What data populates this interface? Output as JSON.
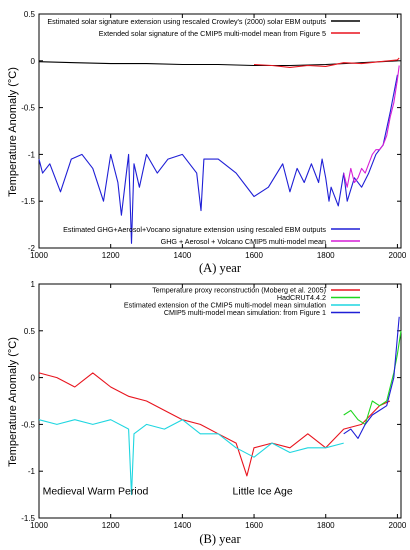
{
  "chart_data": [
    {
      "type": "line",
      "panel": "A",
      "caption": "(A) year",
      "ylabel": "Temperature Anomaly (°C)",
      "xlim": [
        1000,
        2010
      ],
      "ylim": [
        -2,
        0.5
      ],
      "xticks": [
        1000,
        1200,
        1400,
        1600,
        1800,
        2000
      ],
      "yticks": [
        -2,
        -1.5,
        -1,
        -0.5,
        0,
        0.5
      ],
      "ytick_labels": [
        "-2",
        "-1.5",
        "-1",
        "-0.5",
        "0",
        "0.5"
      ],
      "legend_top": [
        {
          "label": "Estimated solar signature extension using rescaled Crowley's (2000) solar EBM outputs",
          "color": "#000000"
        },
        {
          "label": "Extended solar signature of the CMIP5 multi-model mean from Figure 5",
          "color": "#e8141e"
        }
      ],
      "legend_bottom": [
        {
          "label": "Estimated GHG+Aerosol+Vocano signature extension using rescaled EBM outputs",
          "color": "#1f1fd6"
        },
        {
          "label": "GHG + Aerosol + Volcano CMIP5 multi-model mean",
          "color": "#d61fd6"
        }
      ],
      "series": [
        {
          "name": "Estimated solar signature extension using rescaled Crowley's (2000) solar EBM outputs",
          "color": "#000000",
          "x": [
            1000,
            1100,
            1200,
            1300,
            1400,
            1500,
            1600,
            1700,
            1800,
            1900,
            2000
          ],
          "y": [
            -0.01,
            -0.02,
            -0.03,
            -0.03,
            -0.04,
            -0.04,
            -0.05,
            -0.05,
            -0.04,
            -0.02,
            0.0
          ]
        },
        {
          "name": "Extended solar signature of the CMIP5 multi-model mean from Figure 5",
          "color": "#e8141e",
          "x": [
            1600,
            1650,
            1700,
            1750,
            1800,
            1850,
            1900,
            1950,
            2000,
            2005
          ],
          "y": [
            -0.04,
            -0.05,
            -0.07,
            -0.05,
            -0.06,
            -0.02,
            -0.03,
            -0.01,
            0.01,
            0.03
          ]
        },
        {
          "name": "Estimated GHG+Aerosol+Vocano signature extension using rescaled EBM outputs",
          "color": "#1f1fd6",
          "x": [
            1000,
            1010,
            1030,
            1060,
            1090,
            1120,
            1150,
            1180,
            1200,
            1220,
            1230,
            1250,
            1258,
            1265,
            1280,
            1300,
            1330,
            1360,
            1400,
            1440,
            1452,
            1460,
            1500,
            1550,
            1600,
            1640,
            1680,
            1700,
            1720,
            1740,
            1760,
            1780,
            1790,
            1800,
            1809,
            1815,
            1835,
            1850,
            1860,
            1880,
            1900,
            1920,
            1940,
            1960,
            1980,
            2000
          ],
          "y": [
            -1.05,
            -1.2,
            -1.1,
            -1.4,
            -1.05,
            -1.0,
            -1.15,
            -1.5,
            -1.0,
            -1.3,
            -1.65,
            -1.0,
            -1.95,
            -1.1,
            -1.35,
            -1.0,
            -1.2,
            -1.05,
            -1.0,
            -1.2,
            -1.6,
            -1.05,
            -1.05,
            -1.2,
            -1.45,
            -1.35,
            -1.1,
            -1.4,
            -1.15,
            -1.3,
            -1.1,
            -1.3,
            -1.05,
            -1.25,
            -1.5,
            -1.35,
            -1.55,
            -1.2,
            -1.5,
            -1.25,
            -1.35,
            -1.2,
            -1.0,
            -0.9,
            -0.55,
            -0.15
          ]
        },
        {
          "name": "GHG + Aerosol + Volcano CMIP5 multi-model mean",
          "color": "#d61fd6",
          "x": [
            1850,
            1860,
            1870,
            1880,
            1890,
            1900,
            1910,
            1920,
            1930,
            1940,
            1950,
            1960,
            1970,
            1980,
            1990,
            2000,
            2005
          ],
          "y": [
            -1.2,
            -1.35,
            -1.15,
            -1.3,
            -1.25,
            -1.15,
            -1.2,
            -1.1,
            -1.0,
            -0.95,
            -0.95,
            -0.9,
            -0.8,
            -0.6,
            -0.45,
            -0.2,
            -0.05
          ]
        }
      ]
    },
    {
      "type": "line",
      "panel": "B",
      "caption": "(B) year",
      "ylabel": "Temperature Anomaly (°C)",
      "xlim": [
        1000,
        2010
      ],
      "ylim": [
        -1.5,
        1
      ],
      "xticks": [
        1000,
        1200,
        1400,
        1600,
        1800,
        2000
      ],
      "yticks": [
        -1.5,
        -1,
        -0.5,
        0,
        0.5,
        1
      ],
      "ytick_labels": [
        "-1.5",
        "-1",
        "-0.5",
        "0",
        "0.5",
        "1"
      ],
      "annotations": [
        {
          "text": "Medieval Warm Period",
          "x": 1010,
          "y": -1.25
        },
        {
          "text": "Little Ice Age",
          "x": 1540,
          "y": -1.25
        }
      ],
      "legend": [
        {
          "label": "Temperature proxy reconstruction (Moberg et al. 2005)",
          "color": "#e8141e"
        },
        {
          "label": "HadCRUT4.4.2",
          "color": "#1fd61f"
        },
        {
          "label": "Estimated extension of the CMIP5 multi-model mean simulation",
          "color": "#1fd6e0"
        },
        {
          "label": "CMIP5 multi-model mean simulation: from Figure 1",
          "color": "#1f1fd6"
        }
      ],
      "series": [
        {
          "name": "Temperature proxy reconstruction (Moberg et al. 2005)",
          "color": "#e8141e",
          "x": [
            1000,
            1050,
            1100,
            1150,
            1200,
            1250,
            1300,
            1350,
            1400,
            1450,
            1500,
            1550,
            1580,
            1600,
            1650,
            1700,
            1750,
            1800,
            1850,
            1900,
            1950,
            1979
          ],
          "y": [
            0.05,
            0.0,
            -0.1,
            0.05,
            -0.1,
            -0.2,
            -0.25,
            -0.35,
            -0.45,
            -0.5,
            -0.6,
            -0.7,
            -1.05,
            -0.75,
            -0.7,
            -0.75,
            -0.6,
            -0.75,
            -0.55,
            -0.5,
            -0.3,
            -0.25
          ]
        },
        {
          "name": "HadCRUT4.4.2",
          "color": "#1fd61f",
          "x": [
            1850,
            1870,
            1890,
            1910,
            1930,
            1950,
            1970,
            1980,
            1990,
            2000,
            2010
          ],
          "y": [
            -0.4,
            -0.35,
            -0.45,
            -0.5,
            -0.25,
            -0.3,
            -0.25,
            -0.1,
            0.05,
            0.25,
            0.5
          ]
        },
        {
          "name": "Estimated extension of the CMIP5 multi-model mean simulation",
          "color": "#1fd6e0",
          "x": [
            1000,
            1050,
            1100,
            1150,
            1200,
            1250,
            1258,
            1265,
            1300,
            1350,
            1400,
            1450,
            1500,
            1550,
            1600,
            1650,
            1700,
            1750,
            1800,
            1850
          ],
          "y": [
            -0.45,
            -0.5,
            -0.45,
            -0.5,
            -0.45,
            -0.55,
            -1.25,
            -0.6,
            -0.5,
            -0.55,
            -0.45,
            -0.6,
            -0.6,
            -0.75,
            -0.85,
            -0.7,
            -0.8,
            -0.75,
            -0.75,
            -0.7
          ]
        },
        {
          "name": "CMIP5 multi-model mean simulation: from Figure 1",
          "color": "#1f1fd6",
          "x": [
            1850,
            1870,
            1890,
            1910,
            1930,
            1950,
            1970,
            1990,
            2005
          ],
          "y": [
            -0.6,
            -0.55,
            -0.65,
            -0.5,
            -0.4,
            -0.35,
            -0.3,
            0.0,
            0.65
          ]
        }
      ]
    }
  ]
}
